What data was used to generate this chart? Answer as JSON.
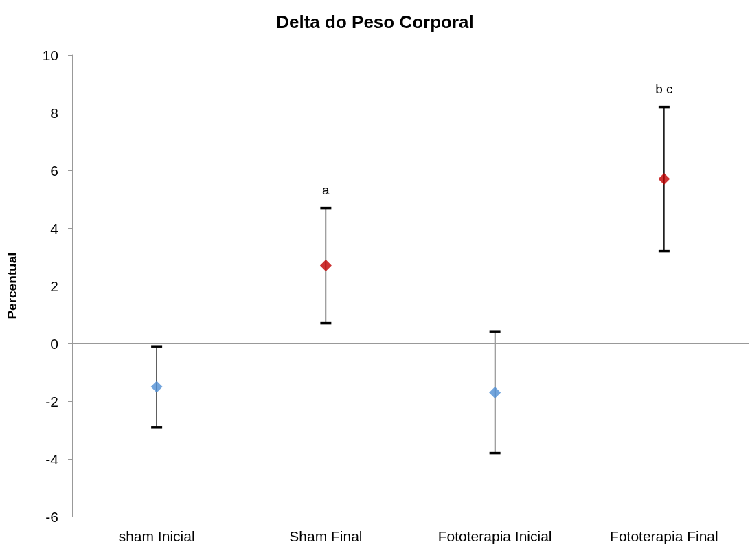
{
  "chart_data": {
    "type": "scatter",
    "title": "Delta do Peso Corporal",
    "ylabel": "Percentual",
    "categories": [
      "sham Inicial",
      "Sham Final",
      "Fototerapia Inicial",
      "Fototerapia Final"
    ],
    "values": [
      -1.5,
      2.7,
      -1.7,
      5.7
    ],
    "errors": [
      1.4,
      2.0,
      2.1,
      2.5
    ],
    "colors": [
      "#4f8fd4",
      "#c00000",
      "#4f8fd4",
      "#c00000"
    ],
    "marker": "diamond",
    "ylim": [
      -6,
      10
    ],
    "yticks": [
      -6,
      -4,
      -2,
      0,
      2,
      4,
      6,
      8,
      10
    ],
    "ref_lines": [
      {
        "axis": "y",
        "value": 0,
        "color": "#999999"
      }
    ],
    "annotations": [
      "a",
      "b c"
    ]
  }
}
